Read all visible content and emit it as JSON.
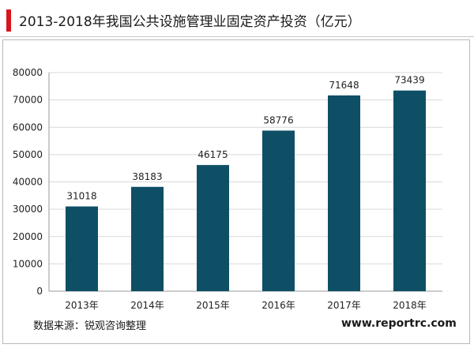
{
  "header": {
    "title": "2013-2018年我国公共设施管理业固定资产投资（亿元）"
  },
  "footer": {
    "source": "数据来源：锐观咨询整理",
    "website": "www.reportrc.com"
  },
  "colors": {
    "bar": "#0e4f66",
    "accent": "#d9141c",
    "grid": "#d9d9d9"
  },
  "chart_data": {
    "type": "bar",
    "title": "2013-2018年我国公共设施管理业固定资产投资（亿元）",
    "categories": [
      "2013年",
      "2014年",
      "2015年",
      "2016年",
      "2017年",
      "2018年"
    ],
    "values": [
      31018,
      38183,
      46175,
      58776,
      71648,
      73439
    ],
    "data_labels": [
      "31018",
      "38183",
      "46175",
      "58776",
      "71648",
      "73439"
    ],
    "ylim": [
      0,
      80000
    ],
    "yticks": [
      "0",
      "10000",
      "20000",
      "30000",
      "40000",
      "50000",
      "60000",
      "70000",
      "80000"
    ],
    "grid": true,
    "legend": "none"
  }
}
